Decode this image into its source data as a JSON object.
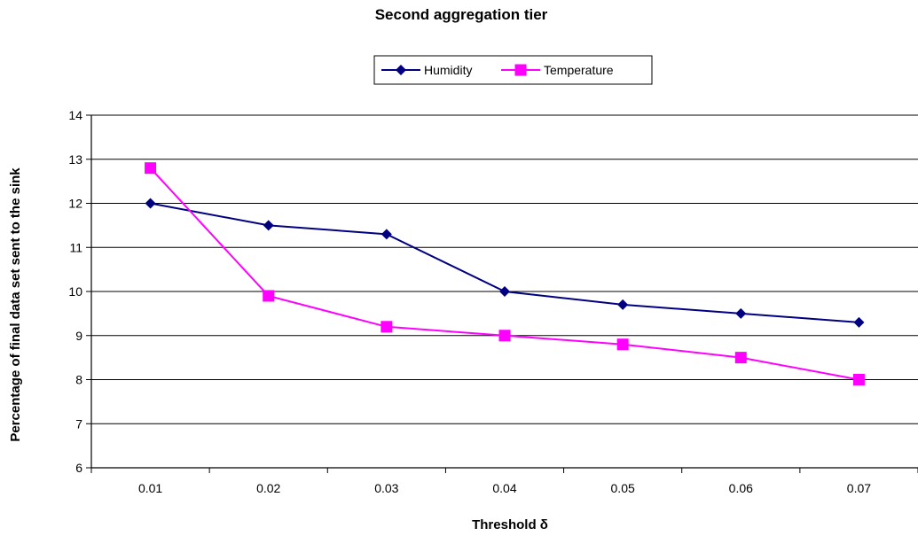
{
  "chart_data": {
    "type": "line",
    "title": "Second aggregation tier",
    "xlabel": "Threshold δ",
    "ylabel": "Percentage of final data set sent to the sink",
    "categories": [
      "0.01",
      "0.02",
      "0.03",
      "0.04",
      "0.05",
      "0.06",
      "0.07"
    ],
    "ylim": [
      6,
      14
    ],
    "yticks": [
      "6",
      "7",
      "8",
      "9",
      "10",
      "11",
      "12",
      "13",
      "14"
    ],
    "grid": "horizontal",
    "legend_position": "top",
    "series": [
      {
        "name": "Humidity",
        "values": [
          12.0,
          11.5,
          11.3,
          10.0,
          9.7,
          9.5,
          9.3
        ],
        "color": "#000080",
        "marker": "diamond"
      },
      {
        "name": "Temperature",
        "values": [
          12.8,
          9.9,
          9.2,
          9.0,
          8.8,
          8.5,
          8.0
        ],
        "color": "#FF00FF",
        "marker": "square"
      }
    ]
  }
}
